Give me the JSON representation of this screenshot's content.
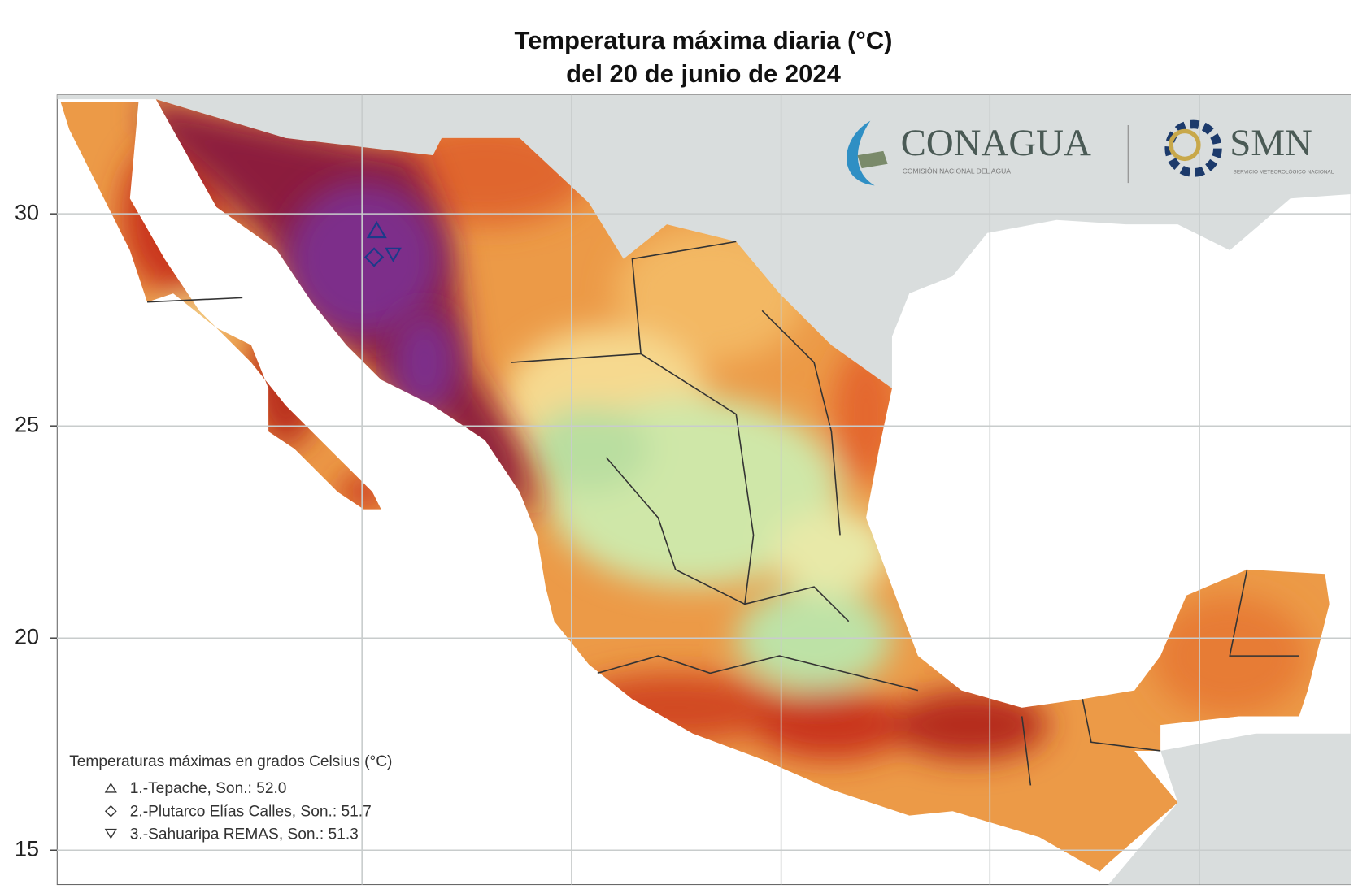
{
  "title": {
    "line1": "Temperatura máxima diaria (°C)",
    "line2": "del 20 de junio de 2024"
  },
  "map": {
    "ylim": [
      14.2,
      32.8
    ],
    "yticks": [
      15,
      20,
      25,
      30
    ]
  },
  "logos": {
    "conagua": "CONAGUA",
    "conagua_sub": "COMISIÓN NACIONAL DEL AGUA",
    "smn": "SMN",
    "smn_sub": "SERVICIO METEOROLÓGICO NACIONAL"
  },
  "legend": {
    "title": "Temperaturas máximas en grados Celsius (°C)",
    "entries": [
      "1.-Tepache, Son.: 52.0",
      "2.-Plutarco Elías Calles, Son.: 51.7",
      "3.-Sahuaripa REMAS, Son.: 51.3"
    ]
  }
}
